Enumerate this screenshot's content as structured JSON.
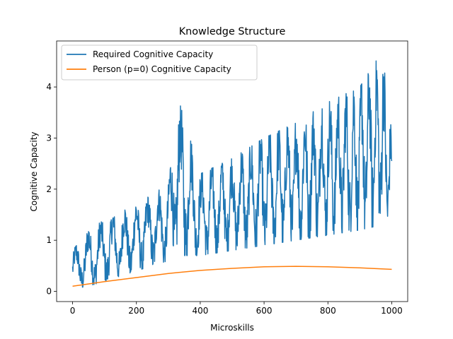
{
  "chart_data": {
    "type": "line",
    "title": "Knowledge Structure",
    "xlabel": "Microskills",
    "ylabel": "Cognitive Capacity",
    "xlim": [
      -50,
      1050
    ],
    "ylim": [
      -0.2,
      4.9
    ],
    "xticks": [
      0,
      200,
      400,
      600,
      800,
      1000
    ],
    "yticks": [
      0,
      1,
      2,
      3,
      4
    ],
    "grid": false,
    "legend_position": "top-left",
    "series": [
      {
        "name": "Required Cognitive Capacity",
        "color": "#1f77b4",
        "style": "noisy-oscillating",
        "x_range": [
          0,
          1000
        ],
        "envelope_points": [
          {
            "x": 0,
            "low": 0.05,
            "high": 0.8
          },
          {
            "x": 50,
            "low": 0.1,
            "high": 1.2
          },
          {
            "x": 100,
            "low": 0.2,
            "high": 1.4
          },
          {
            "x": 200,
            "low": 0.4,
            "high": 1.7
          },
          {
            "x": 300,
            "low": 0.6,
            "high": 2.1
          },
          {
            "x": 330,
            "low": 0.7,
            "high": 3.8
          },
          {
            "x": 400,
            "low": 0.7,
            "high": 2.3
          },
          {
            "x": 500,
            "low": 0.8,
            "high": 2.6
          },
          {
            "x": 600,
            "low": 0.9,
            "high": 3.0
          },
          {
            "x": 700,
            "low": 1.0,
            "high": 3.3
          },
          {
            "x": 800,
            "low": 1.1,
            "high": 3.7
          },
          {
            "x": 900,
            "low": 1.2,
            "high": 4.0
          },
          {
            "x": 970,
            "low": 1.3,
            "high": 4.7
          },
          {
            "x": 1000,
            "low": 1.3,
            "high": 3.1
          }
        ],
        "end_value": 2.55
      },
      {
        "name": "Person (p=0) Cognitive Capacity",
        "color": "#ff7f0e",
        "style": "smooth",
        "x": [
          0,
          100,
          200,
          300,
          400,
          500,
          600,
          700,
          800,
          900,
          1000
        ],
        "values": [
          0.1,
          0.19,
          0.27,
          0.35,
          0.41,
          0.45,
          0.48,
          0.49,
          0.48,
          0.46,
          0.43
        ]
      }
    ]
  }
}
